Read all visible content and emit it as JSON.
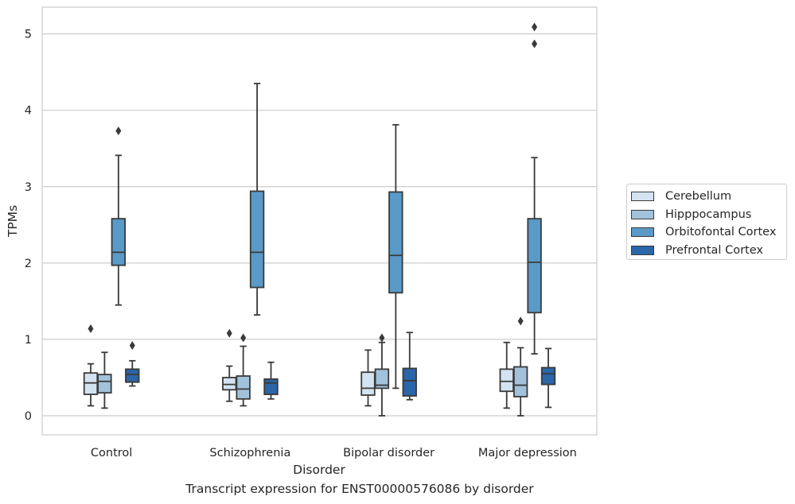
{
  "caption": "Transcript expression for ENST00000576086 by disorder",
  "chart_data": {
    "type": "box",
    "xlabel": "Disorder",
    "ylabel": "TPMs",
    "ylim": [
      -0.25,
      5.35
    ],
    "yticks": [
      0,
      1,
      2,
      3,
      4,
      5
    ],
    "grid": "horizontal",
    "legend_position": "right",
    "categories": [
      "Control",
      "Schizophrenia",
      "Bipolar disorder",
      "Major depression"
    ],
    "series": [
      {
        "name": "Cerebellum",
        "color": "#d4e3f2",
        "boxes": [
          {
            "whislo": 0.13,
            "q1": 0.28,
            "med": 0.43,
            "q3": 0.56,
            "whishi": 0.68,
            "fliers": [
              1.14
            ]
          },
          {
            "whislo": 0.19,
            "q1": 0.34,
            "med": 0.41,
            "q3": 0.5,
            "whishi": 0.65,
            "fliers": [
              1.08
            ]
          },
          {
            "whislo": 0.13,
            "q1": 0.27,
            "med": 0.36,
            "q3": 0.57,
            "whishi": 0.86,
            "fliers": []
          },
          {
            "whislo": 0.1,
            "q1": 0.32,
            "med": 0.45,
            "q3": 0.61,
            "whishi": 0.96,
            "fliers": []
          }
        ]
      },
      {
        "name": "Hipppocampus",
        "color": "#a1c2da",
        "boxes": [
          {
            "whislo": 0.1,
            "q1": 0.3,
            "med": 0.45,
            "q3": 0.54,
            "whishi": 0.83,
            "fliers": []
          },
          {
            "whislo": 0.13,
            "q1": 0.22,
            "med": 0.35,
            "q3": 0.52,
            "whishi": 0.91,
            "fliers": [
              1.02
            ]
          },
          {
            "whislo": 0.0,
            "q1": 0.36,
            "med": 0.4,
            "q3": 0.61,
            "whishi": 0.96,
            "fliers": [
              1.02
            ]
          },
          {
            "whislo": 0.0,
            "q1": 0.25,
            "med": 0.4,
            "q3": 0.64,
            "whishi": 0.89,
            "fliers": [
              1.24
            ]
          }
        ]
      },
      {
        "name": "Orbitofontal Cortex",
        "color": "#5a9ac8",
        "boxes": [
          {
            "whislo": 1.45,
            "q1": 1.97,
            "med": 2.14,
            "q3": 2.58,
            "whishi": 3.41,
            "fliers": [
              3.73
            ]
          },
          {
            "whislo": 1.32,
            "q1": 1.68,
            "med": 2.14,
            "q3": 2.94,
            "whishi": 4.35,
            "fliers": []
          },
          {
            "whislo": 0.36,
            "q1": 1.61,
            "med": 2.1,
            "q3": 2.93,
            "whishi": 3.81,
            "fliers": []
          },
          {
            "whislo": 0.81,
            "q1": 1.35,
            "med": 2.01,
            "q3": 2.58,
            "whishi": 3.38,
            "fliers": [
              4.87,
              5.09
            ]
          }
        ]
      },
      {
        "name": "Prefrontal Cortex",
        "color": "#2a66a8",
        "boxes": [
          {
            "whislo": 0.39,
            "q1": 0.44,
            "med": 0.54,
            "q3": 0.61,
            "whishi": 0.72,
            "fliers": [
              0.92
            ]
          },
          {
            "whislo": 0.22,
            "q1": 0.28,
            "med": 0.43,
            "q3": 0.48,
            "whishi": 0.7,
            "fliers": []
          },
          {
            "whislo": 0.21,
            "q1": 0.26,
            "med": 0.46,
            "q3": 0.62,
            "whishi": 1.09,
            "fliers": []
          },
          {
            "whislo": 0.11,
            "q1": 0.41,
            "med": 0.55,
            "q3": 0.63,
            "whishi": 0.88,
            "fliers": []
          }
        ]
      }
    ]
  }
}
